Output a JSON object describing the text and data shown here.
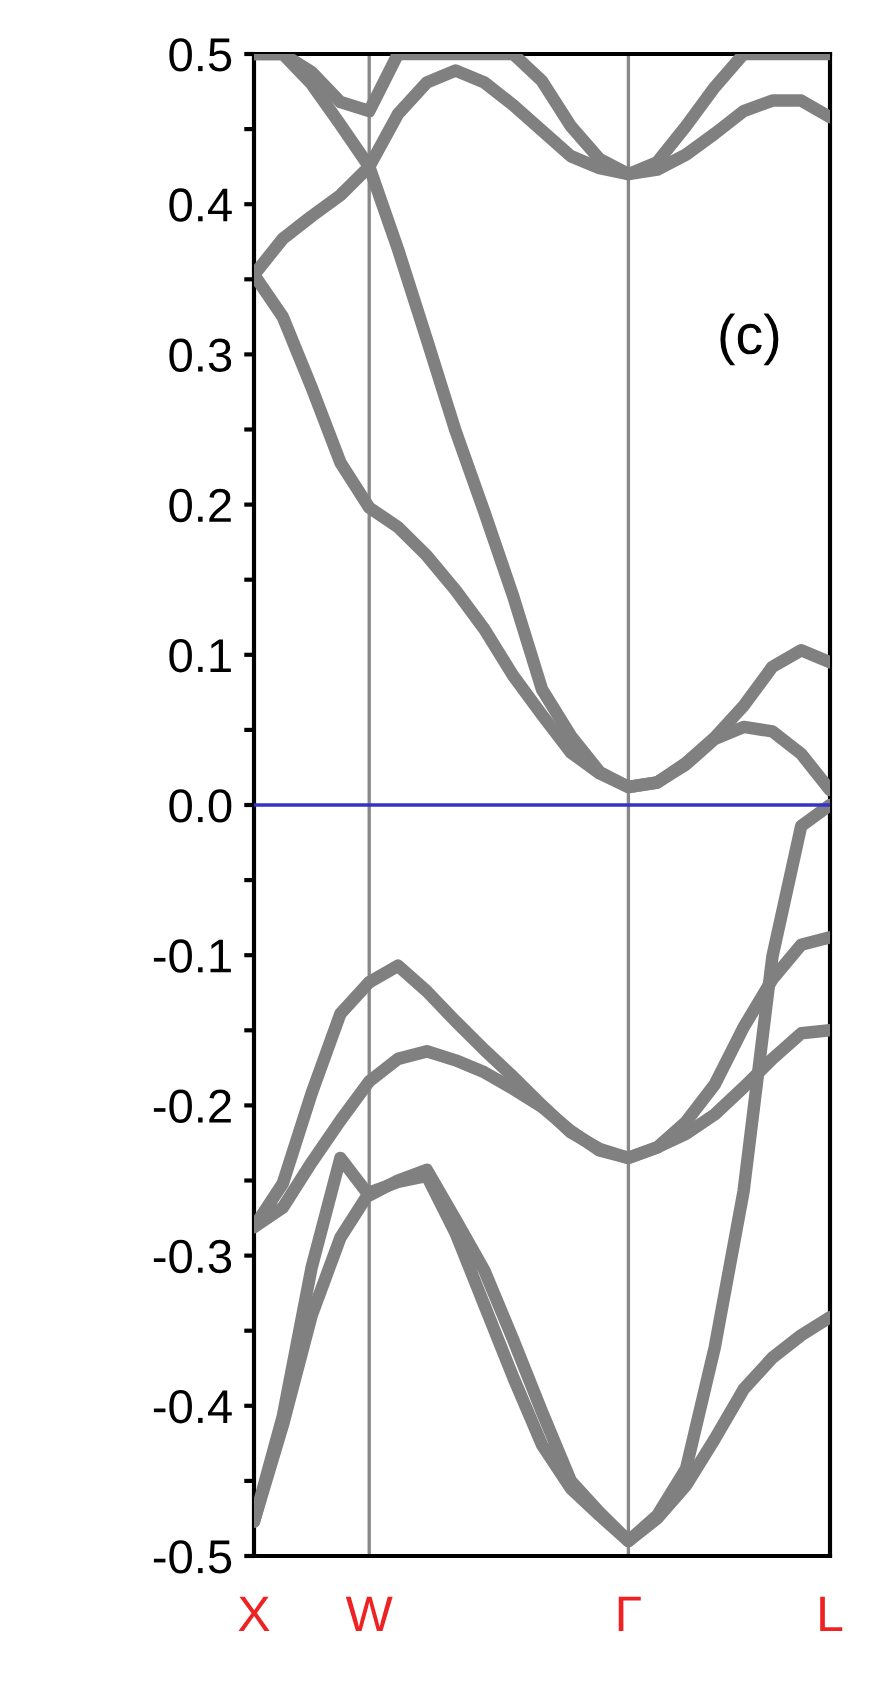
{
  "chart_data": {
    "type": "line",
    "annotations": [
      "(c)"
    ],
    "categories": [
      "X",
      null,
      null,
      null,
      "W",
      null,
      null,
      null,
      null,
      null,
      null,
      null,
      null,
      "Γ",
      null,
      null,
      null,
      null,
      null,
      null,
      "L"
    ],
    "ylim": [
      -0.5,
      0.5
    ],
    "yticks": [
      -0.5,
      {
        "value": -0.45,
        "label": null
      },
      -0.4,
      {
        "value": -0.35,
        "label": null
      },
      -0.3,
      {
        "value": -0.25,
        "label": null
      },
      -0.2,
      {
        "value": -0.15,
        "label": null
      },
      -0.1,
      {
        "value": -0.05,
        "label": null
      },
      {
        "value": 0,
        "label": "0.0"
      },
      {
        "value": 0.05,
        "label": null
      },
      0.1,
      {
        "value": 0.15,
        "label": null
      },
      0.2,
      {
        "value": 0.25,
        "label": null
      },
      0.3,
      {
        "value": 0.35,
        "label": null
      },
      0.4,
      {
        "value": 0.45,
        "label": null
      },
      0.5
    ],
    "grid": false,
    "marker": "none",
    "line_style": "solid",
    "ref_lines": [
      {
        "axis": "y",
        "value": 0,
        "color": "#3333cc"
      },
      {
        "axis": "x",
        "value": "W",
        "color": "#888888"
      },
      {
        "axis": "x",
        "value": "Γ",
        "color": "#888888"
      }
    ],
    "series": [
      {
        "color": "#808080",
        "values": [
          0.5,
          0.5,
          0.488,
          0.468,
          0.462,
          0.5,
          0.5,
          0.5,
          0.5,
          0.5,
          0.482,
          0.452,
          0.43,
          0.42,
          0.428,
          0.452,
          0.478,
          0.5,
          0.5,
          0.5,
          0.5
        ]
      },
      {
        "color": "#808080",
        "values": [
          0.353,
          0.377,
          0.392,
          0.406,
          0.425,
          0.46,
          0.481,
          0.489,
          0.481,
          0.466,
          0.449,
          0.432,
          0.424,
          0.42,
          0.423,
          0.433,
          0.447,
          0.462,
          0.469,
          0.469,
          0.458
        ]
      },
      {
        "color": "#808080",
        "values": [
          0.5,
          0.5,
          0.48,
          0.453,
          0.425,
          0.37,
          0.31,
          0.249,
          0.195,
          0.139,
          0.077,
          0.046,
          0.022,
          0.012,
          0.015,
          0.028,
          0.045,
          0.066,
          0.092,
          0.103,
          0.095
        ]
      },
      {
        "color": "#808080",
        "values": [
          0.353,
          0.325,
          0.278,
          0.228,
          0.198,
          0.185,
          0.166,
          0.143,
          0.117,
          0.086,
          0.06,
          0.035,
          0.021,
          0.012,
          0.015,
          0.027,
          0.044,
          0.052,
          0.049,
          0.034,
          0.01
        ]
      },
      {
        "color": "#808080",
        "values": [
          -0.281,
          -0.252,
          -0.192,
          -0.139,
          -0.118,
          -0.107,
          -0.124,
          -0.144,
          -0.163,
          -0.181,
          -0.2,
          -0.218,
          -0.229,
          -0.235,
          -0.228,
          -0.211,
          -0.186,
          -0.148,
          -0.116,
          -0.093,
          -0.088
        ]
      },
      {
        "color": "#808080",
        "values": [
          -0.281,
          -0.268,
          -0.238,
          -0.21,
          -0.184,
          -0.169,
          -0.164,
          -0.17,
          -0.178,
          -0.189,
          -0.201,
          -0.217,
          -0.23,
          -0.235,
          -0.228,
          -0.219,
          -0.206,
          -0.188,
          -0.169,
          -0.152,
          -0.15
        ]
      },
      {
        "color": "#808080",
        "values": [
          -0.477,
          -0.407,
          -0.308,
          -0.235,
          -0.26,
          -0.25,
          -0.243,
          -0.276,
          -0.31,
          -0.356,
          -0.404,
          -0.45,
          -0.471,
          -0.49,
          -0.475,
          -0.453,
          -0.422,
          -0.389,
          -0.368,
          -0.353,
          -0.341
        ]
      },
      {
        "color": "#808080",
        "values": [
          -0.477,
          -0.413,
          -0.34,
          -0.288,
          -0.258,
          -0.251,
          -0.247,
          -0.285,
          -0.333,
          -0.381,
          -0.426,
          -0.455,
          -0.473,
          -0.49,
          -0.473,
          -0.442,
          -0.361,
          -0.257,
          -0.101,
          -0.014,
          0.0
        ]
      }
    ]
  }
}
